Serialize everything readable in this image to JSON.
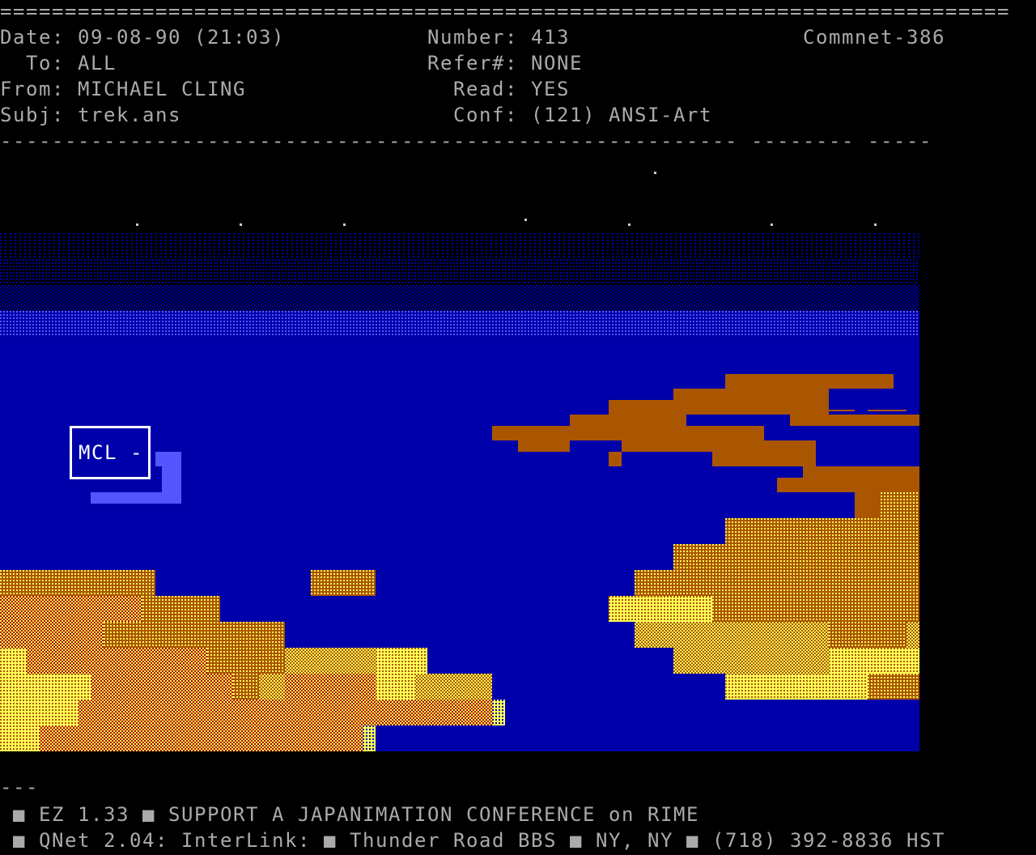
{
  "header": {
    "rule_top": "==============================================================================",
    "date_label": "Date:",
    "date_value": "09-08-90 (21:03)",
    "to_label": "To:",
    "to_value": "ALL",
    "from_label": "From:",
    "from_value": "MICHAEL CLING",
    "subj_label": "Subj:",
    "subj_value": "trek.ans",
    "number_label": "Number:",
    "number_value": "413",
    "refer_label": "Refer#:",
    "refer_value": "NONE",
    "read_label": "Read:",
    "read_value": "YES",
    "conf_label": "Conf:",
    "conf_value": "(121) ANSI-Art",
    "system": "Commnet-386",
    "rule_bottom": "--------------------------------------------------------- -------- -----"
  },
  "art": {
    "signature": "MCL -",
    "colors": {
      "ocean": "#0000aa",
      "brown": "#aa5500",
      "yellow": "#ffff55",
      "red": "#aa0000",
      "light_blue": "#5555ff",
      "text": "#aaaaaa"
    }
  },
  "footer": {
    "tearline": "---",
    "tagline_1": " ■ EZ 1.33 ■ SUPPORT A JAPANIMATION CONFERENCE on RIME",
    "tagline_2": " ■ QNet 2.04: InterLink: ■ Thunder Road BBS ■ NY, NY ■ (718) 392-8836 HST"
  }
}
